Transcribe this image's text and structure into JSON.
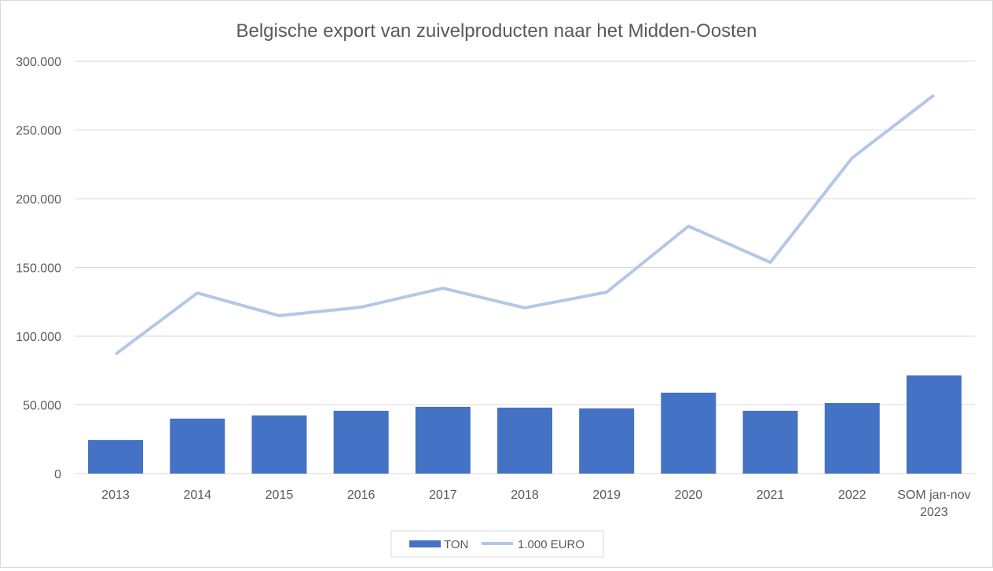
{
  "chart_data": {
    "type": "bar+line",
    "title": "Belgische export van zuivelproducten naar het Midden-Oosten",
    "categories": [
      "2013",
      "2014",
      "2015",
      "2016",
      "2017",
      "2018",
      "2019",
      "2020",
      "2021",
      "2022",
      "SOM jan-nov|2023"
    ],
    "series": [
      {
        "name": "TON",
        "type": "bar",
        "color": "#4472C4",
        "values": [
          24500,
          40000,
          42300,
          45700,
          48600,
          48000,
          47400,
          58900,
          45700,
          51400,
          71400
        ]
      },
      {
        "name": "1.000 EURO",
        "type": "line",
        "color": "#B4C7E7",
        "values": [
          86900,
          131400,
          114900,
          121100,
          134900,
          120600,
          132000,
          180000,
          153700,
          229700,
          275400
        ]
      }
    ],
    "ylim": [
      0,
      300000
    ],
    "yticks": [
      0,
      50000,
      100000,
      150000,
      200000,
      250000,
      300000
    ],
    "ytick_labels": [
      "0",
      "50.000",
      "100.000",
      "150.000",
      "200.000",
      "250.000",
      "300.000"
    ],
    "grid": true,
    "legend": "bottom-center",
    "xlabel": "",
    "ylabel": ""
  }
}
